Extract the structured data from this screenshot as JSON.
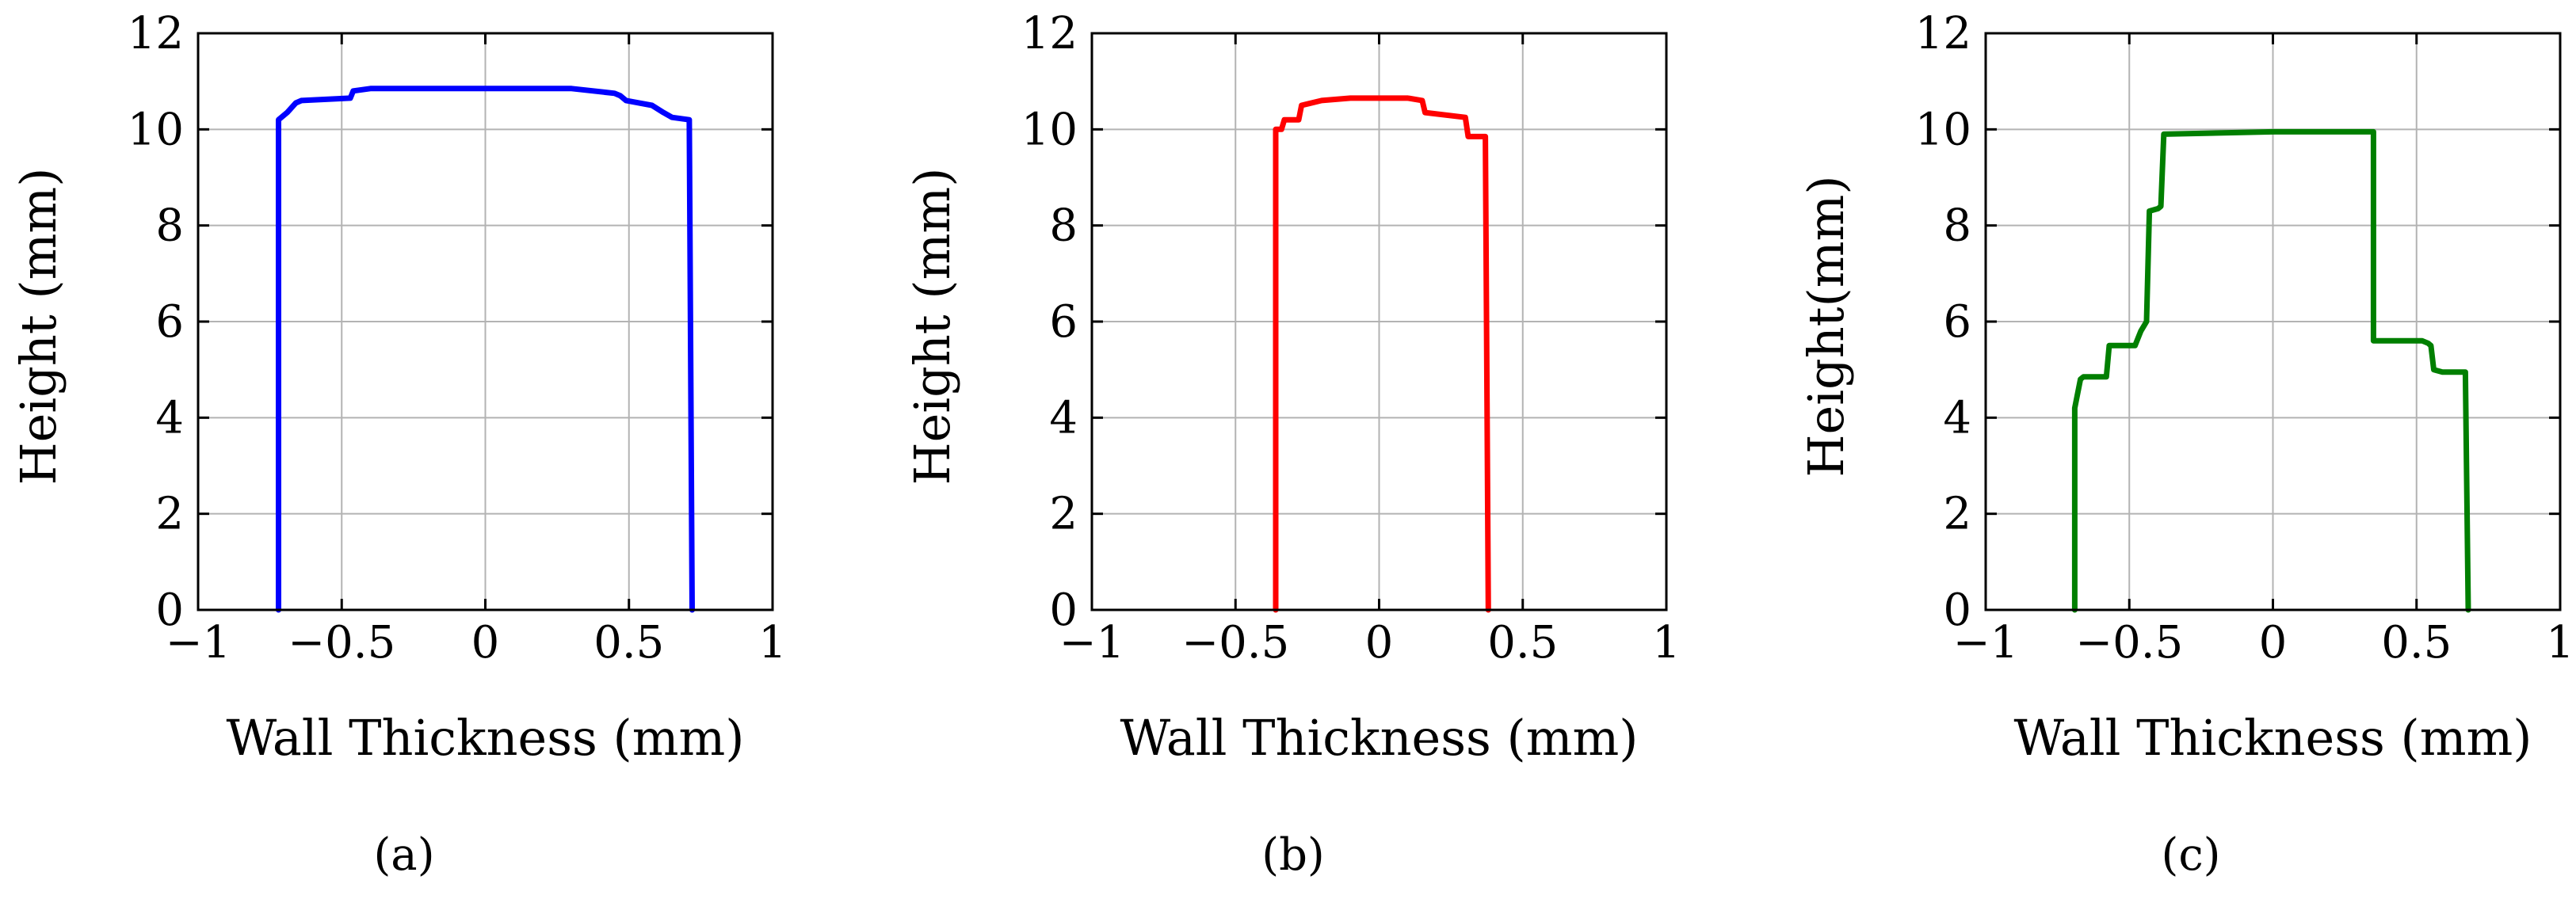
{
  "chart_data": [
    {
      "type": "line",
      "caption": "(a)",
      "xlabel": "Wall Thickness (mm)",
      "ylabel": "Height (mm)",
      "xlim": [
        -1,
        1
      ],
      "ylim": [
        0,
        12
      ],
      "xticks": [
        -1,
        -0.5,
        0,
        0.5,
        1
      ],
      "xtick_labels": [
        "−1",
        "−0.5",
        "0",
        "0.5",
        "1"
      ],
      "yticks": [
        0,
        2,
        4,
        6,
        8,
        10,
        12
      ],
      "ytick_labels": [
        "0",
        "2",
        "4",
        "6",
        "8",
        "10",
        "12"
      ],
      "grid": true,
      "series": [
        {
          "color": "#0000ff",
          "x": [
            -0.72,
            -0.72,
            -0.69,
            -0.66,
            -0.64,
            -0.47,
            -0.46,
            -0.4,
            -0.3,
            0.3,
            0.45,
            0.47,
            0.49,
            0.58,
            0.62,
            0.65,
            0.71,
            0.72
          ],
          "y": [
            0,
            10.2,
            10.35,
            10.55,
            10.6,
            10.65,
            10.8,
            10.85,
            10.85,
            10.85,
            10.75,
            10.7,
            10.6,
            10.5,
            10.35,
            10.25,
            10.2,
            0
          ]
        }
      ]
    },
    {
      "type": "line",
      "caption": "(b)",
      "xlabel": "Wall Thickness (mm)",
      "ylabel": "Height (mm)",
      "xlim": [
        -1,
        1
      ],
      "ylim": [
        0,
        12
      ],
      "xticks": [
        -1,
        -0.5,
        0,
        0.5,
        1
      ],
      "xtick_labels": [
        "−1",
        "−0.5",
        "0",
        "0.5",
        "1"
      ],
      "yticks": [
        0,
        2,
        4,
        6,
        8,
        10,
        12
      ],
      "ytick_labels": [
        "0",
        "2",
        "4",
        "6",
        "8",
        "10",
        "12"
      ],
      "grid": true,
      "series": [
        {
          "color": "#ff0000",
          "x": [
            -0.36,
            -0.36,
            -0.34,
            -0.33,
            -0.28,
            -0.27,
            -0.2,
            -0.1,
            0.1,
            0.15,
            0.16,
            0.3,
            0.31,
            0.37,
            0.38
          ],
          "y": [
            0,
            10.0,
            10.0,
            10.2,
            10.2,
            10.5,
            10.6,
            10.65,
            10.65,
            10.6,
            10.35,
            10.25,
            9.85,
            9.85,
            0
          ]
        }
      ]
    },
    {
      "type": "line",
      "caption": "(c)",
      "xlabel": "Wall Thickness (mm)",
      "ylabel": "Height(mm)",
      "xlim": [
        -1,
        1
      ],
      "ylim": [
        0,
        12
      ],
      "xticks": [
        -1,
        -0.5,
        0,
        0.5,
        1
      ],
      "xtick_labels": [
        "−1",
        "−0.5",
        "0",
        "0.5",
        "1"
      ],
      "yticks": [
        0,
        2,
        4,
        6,
        8,
        10,
        12
      ],
      "ytick_labels": [
        "0",
        "2",
        "4",
        "6",
        "8",
        "10",
        "12"
      ],
      "grid": true,
      "series": [
        {
          "color": "#007f00",
          "x": [
            -0.69,
            -0.69,
            -0.67,
            -0.66,
            -0.58,
            -0.57,
            -0.5,
            -0.48,
            -0.46,
            -0.44,
            -0.43,
            -0.4,
            -0.39,
            -0.38,
            0.0,
            0.35,
            0.35,
            0.52,
            0.54,
            0.55,
            0.56,
            0.59,
            0.64,
            0.67,
            0.68
          ],
          "y": [
            0,
            4.2,
            4.8,
            4.85,
            4.85,
            5.5,
            5.5,
            5.5,
            5.8,
            6.0,
            8.3,
            8.35,
            8.4,
            9.9,
            9.95,
            9.95,
            5.6,
            5.6,
            5.55,
            5.5,
            5.0,
            4.95,
            4.95,
            4.95,
            0
          ]
        }
      ]
    }
  ]
}
